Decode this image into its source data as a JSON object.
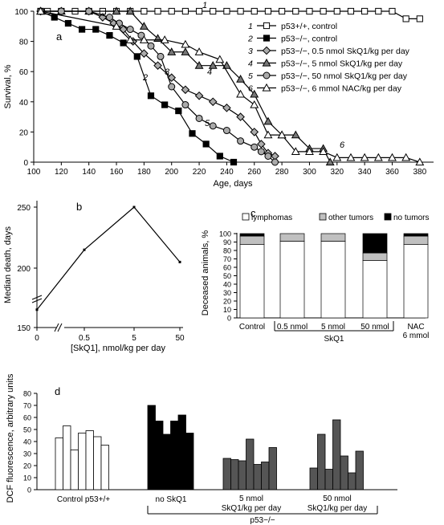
{
  "chart_data": [
    {
      "panel": "a",
      "type": "line",
      "ylabel": "Survival, %",
      "xlabel": "Age, days",
      "xlim": [
        100,
        390
      ],
      "ylim": [
        0,
        100
      ],
      "xticks": [
        "100",
        "120",
        "140",
        "160",
        "180",
        "200",
        "220",
        "240",
        "260",
        "280",
        "300",
        "320",
        "340",
        "360",
        "380"
      ],
      "yticks": [
        "0",
        "20",
        "40",
        "60",
        "80",
        "100"
      ],
      "legend_position": "right",
      "series": [
        {
          "num": "1",
          "name": "p53+/+, control",
          "marker": "square",
          "fill": "#ffffff",
          "x": [
            105,
            110,
            120,
            130,
            140,
            150,
            160,
            170,
            180,
            190,
            200,
            210,
            220,
            230,
            240,
            250,
            260,
            270,
            280,
            290,
            300,
            310,
            320,
            330,
            340,
            350,
            360,
            370,
            380
          ],
          "y": [
            100,
            100,
            100,
            100,
            100,
            100,
            100,
            100,
            100,
            100,
            100,
            100,
            100,
            100,
            100,
            100,
            100,
            100,
            100,
            100,
            100,
            100,
            100,
            100,
            100,
            100,
            100,
            95,
            95
          ]
        },
        {
          "num": "2",
          "name": "p53−/−, control",
          "marker": "square",
          "fill": "#000000",
          "x": [
            105,
            115,
            125,
            135,
            145,
            155,
            165,
            175,
            185,
            195,
            205,
            215,
            225,
            235,
            245
          ],
          "y": [
            100,
            96,
            92,
            88,
            88,
            84,
            79,
            70,
            44,
            38,
            34,
            19,
            12,
            4,
            0
          ]
        },
        {
          "num": "3",
          "name": "p53−/−, 0.5 nmol SkQ1/kg per day",
          "marker": "diamond",
          "fill": "#aaaaaa",
          "x": [
            105,
            120,
            140,
            150,
            158,
            165,
            172,
            180,
            190,
            200,
            210,
            220,
            230,
            240,
            250,
            260,
            265,
            270,
            275
          ],
          "y": [
            100,
            100,
            100,
            96,
            92,
            88,
            80,
            72,
            64,
            56,
            48,
            44,
            40,
            36,
            30,
            20,
            12,
            6,
            4
          ]
        },
        {
          "num": "4",
          "name": "p53−/−, 5 nmol SkQ1/kg per day",
          "marker": "triangle",
          "fill": "#777777",
          "x": [
            105,
            120,
            140,
            160,
            170,
            180,
            190,
            200,
            210,
            220,
            230,
            240,
            250,
            260,
            270,
            280,
            290,
            300,
            310,
            315
          ],
          "y": [
            100,
            100,
            100,
            100,
            100,
            90,
            82,
            73,
            73,
            64,
            64,
            64,
            55,
            45,
            27,
            18,
            18,
            9,
            9,
            0
          ]
        },
        {
          "num": "5",
          "name": "p53−/−, 50 nmol SkQ1/kg per day",
          "marker": "circle",
          "fill": "#aaaaaa",
          "x": [
            105,
            120,
            140,
            155,
            162,
            170,
            178,
            185,
            192,
            200,
            210,
            220,
            230,
            240,
            250,
            260,
            265,
            270,
            275
          ],
          "y": [
            100,
            100,
            100,
            96,
            92,
            88,
            84,
            77,
            70,
            50,
            38,
            29,
            24,
            21,
            14,
            10,
            7,
            4,
            0
          ]
        },
        {
          "num": "6",
          "name": "p53−/−, 6 mmol NAC/kg per day",
          "marker": "triangle",
          "fill": "#ffffff",
          "x": [
            105,
            160,
            170,
            180,
            195,
            210,
            220,
            235,
            250,
            260,
            270,
            280,
            290,
            300,
            310,
            320,
            330,
            340,
            350,
            360,
            370,
            380
          ],
          "y": [
            100,
            90,
            81,
            81,
            81,
            78,
            73,
            68,
            45,
            38,
            18,
            18,
            7,
            7,
            7,
            3,
            3,
            3,
            3,
            3,
            3,
            0
          ]
        }
      ]
    },
    {
      "panel": "b",
      "type": "line",
      "ylabel": "Median death, days",
      "xlabel": "[SkQ1], nmol/kg per day",
      "categories": [
        "0",
        "0.5",
        "5",
        "50"
      ],
      "values": [
        165,
        215,
        250,
        205
      ],
      "yticks": [
        "150",
        "200",
        "250"
      ],
      "ylim": [
        150,
        250
      ]
    },
    {
      "panel": "c",
      "type": "bar",
      "stacked": true,
      "ylabel": "Deceased animals, %",
      "yticks": [
        "0",
        "10",
        "20",
        "30",
        "40",
        "50",
        "60",
        "70",
        "80",
        "90",
        "100"
      ],
      "ylim": [
        0,
        100
      ],
      "legend": [
        "lymphomas",
        "other tumors",
        "no tumors"
      ],
      "legend_position": "top",
      "categories": [
        "Control",
        "0.5 nmol",
        "5 nmol",
        "50 nmol",
        "NAC"
      ],
      "category_sublabels": [
        "",
        "",
        "",
        "",
        "6 mmol"
      ],
      "group_label": "SkQ1",
      "series": [
        {
          "name": "lymphomas",
          "color": "#ffffff",
          "values": [
            87,
            91,
            91,
            68,
            87
          ]
        },
        {
          "name": "other tumors",
          "color": "#c0c0c0",
          "values": [
            10,
            9,
            9,
            9,
            10
          ]
        },
        {
          "name": "no tumors",
          "color": "#000000",
          "values": [
            3,
            0,
            0,
            23,
            3
          ]
        }
      ]
    },
    {
      "panel": "d",
      "type": "bar",
      "ylabel": "DCF fluorescence, arbitrary units",
      "yticks": [
        "0",
        "10",
        "20",
        "30",
        "40",
        "50",
        "60",
        "70",
        "80"
      ],
      "ylim": [
        0,
        80
      ],
      "group_label": "p53−/−",
      "groups": [
        {
          "label": "Control p53+/+",
          "color": "#ffffff",
          "values": [
            43,
            53,
            33,
            47,
            49,
            44,
            37
          ]
        },
        {
          "label": "no SkQ1",
          "color": "#000000",
          "values": [
            70,
            57,
            46,
            57,
            62,
            47
          ]
        },
        {
          "label": "5 nmol SkQ1/kg per day",
          "color": "#555555",
          "values": [
            26,
            25,
            24,
            42,
            21,
            23,
            35
          ]
        },
        {
          "label": "50 nmol SkQ1/kg per day",
          "color": "#555555",
          "values": [
            18,
            46,
            17,
            58,
            28,
            14,
            32
          ]
        }
      ]
    }
  ]
}
